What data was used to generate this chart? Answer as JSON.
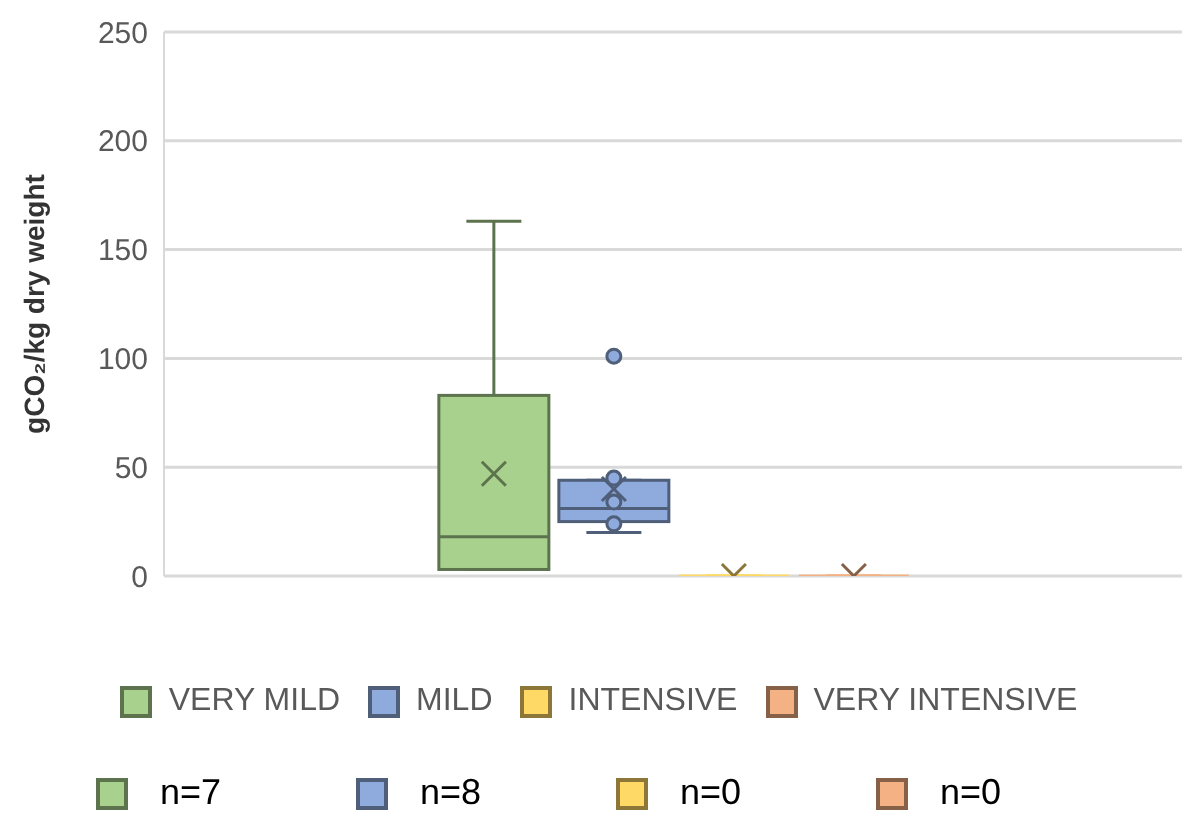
{
  "chart_data": {
    "type": "box",
    "ylabel": "gCO₂/kg dry weight",
    "categories": [
      null
    ],
    "ylim": [
      0,
      250
    ],
    "yticks": [
      0,
      50,
      100,
      150,
      200,
      250
    ],
    "grid": "y",
    "legend": "bottom",
    "series": [
      {
        "name": "VERY MILD",
        "color": "#a9d18e",
        "boxes": [
          {
            "low": 3,
            "q1": 3,
            "median": 18,
            "q3": 83,
            "high": 163,
            "mean": 47
          }
        ]
      },
      {
        "name": "MILD",
        "color": "#8faadc",
        "boxes": [
          {
            "low": 20,
            "q1": 25,
            "median": 31,
            "q3": 44,
            "high": 44,
            "mean": 40,
            "outliers": [
              101,
              45,
              34,
              24
            ]
          }
        ]
      },
      {
        "name": "INTENSIVE",
        "color": "#ffd966",
        "boxes": [
          {
            "low": 0,
            "q1": 0,
            "median": 0,
            "q3": 0,
            "high": 0,
            "mean": 0
          }
        ]
      },
      {
        "name": "VERY INTENSIVE",
        "color": "#f4b183",
        "boxes": [
          {
            "low": 0,
            "q1": 0,
            "median": 0,
            "q3": 0,
            "high": 0,
            "mean": 0
          }
        ]
      }
    ],
    "annotations": [
      "n=7",
      "n=8",
      "n=0",
      "n=0"
    ]
  }
}
